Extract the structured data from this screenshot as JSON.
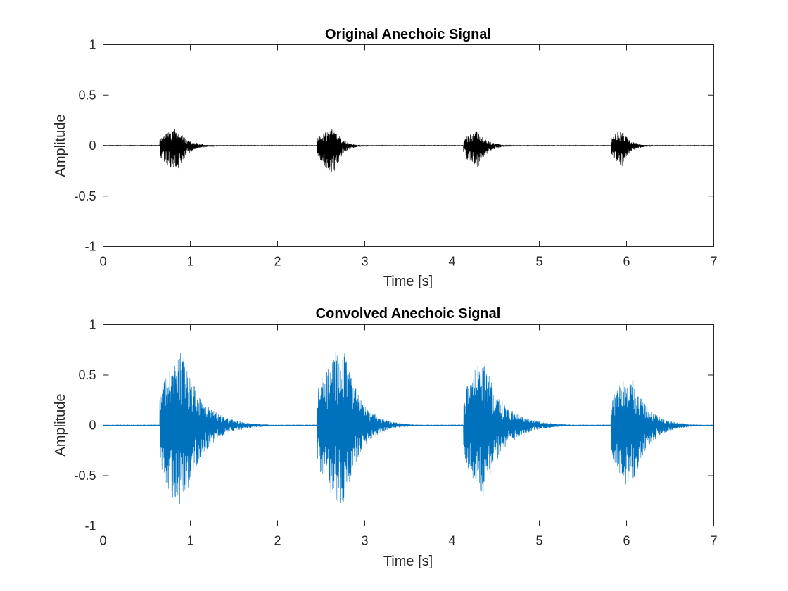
{
  "chart_data": [
    {
      "type": "line",
      "title": "Original Anechoic Signal",
      "xlabel": "Time [s]",
      "ylabel": "Amplitude",
      "xlim": [
        0,
        7
      ],
      "ylim": [
        -1,
        1
      ],
      "xticks": [
        "0",
        "1",
        "2",
        "3",
        "4",
        "5",
        "6",
        "7"
      ],
      "yticks": [
        "-1",
        "-0.5",
        "0",
        "0.5",
        "1"
      ],
      "grid": false,
      "series": [
        {
          "color": "#000000",
          "bursts": [
            {
              "start": 0.65,
              "peak_time": 0.85,
              "end": 1.35,
              "peak_pos": 0.2,
              "peak_neg": -0.3
            },
            {
              "start": 2.45,
              "peak_time": 2.65,
              "end": 3.05,
              "peak_pos": 0.2,
              "peak_neg": -0.32
            },
            {
              "start": 4.13,
              "peak_time": 4.3,
              "end": 4.75,
              "peak_pos": 0.17,
              "peak_neg": -0.25
            },
            {
              "start": 5.82,
              "peak_time": 5.95,
              "end": 6.35,
              "peak_pos": 0.18,
              "peak_neg": -0.23
            }
          ]
        }
      ]
    },
    {
      "type": "line",
      "title": "Convolved Anechoic Signal",
      "xlabel": "Time [s]",
      "ylabel": "Amplitude",
      "xlim": [
        0,
        7
      ],
      "ylim": [
        -1,
        1
      ],
      "xticks": [
        "0",
        "1",
        "2",
        "3",
        "4",
        "5",
        "6",
        "7"
      ],
      "yticks": [
        "-1",
        "-0.5",
        "0",
        "0.5",
        "1"
      ],
      "grid": false,
      "series": [
        {
          "color": "#0072BD",
          "bursts": [
            {
              "start": 0.65,
              "peak_time": 0.9,
              "end": 1.9,
              "peak_pos": 0.85,
              "peak_neg": -1.0
            },
            {
              "start": 2.45,
              "peak_time": 2.75,
              "end": 3.55,
              "peak_pos": 0.93,
              "peak_neg": -0.97
            },
            {
              "start": 4.13,
              "peak_time": 4.35,
              "end": 5.35,
              "peak_pos": 0.77,
              "peak_neg": -0.82
            },
            {
              "start": 5.82,
              "peak_time": 6.05,
              "end": 6.85,
              "peak_pos": 0.6,
              "peak_neg": -0.75
            }
          ]
        }
      ]
    }
  ]
}
